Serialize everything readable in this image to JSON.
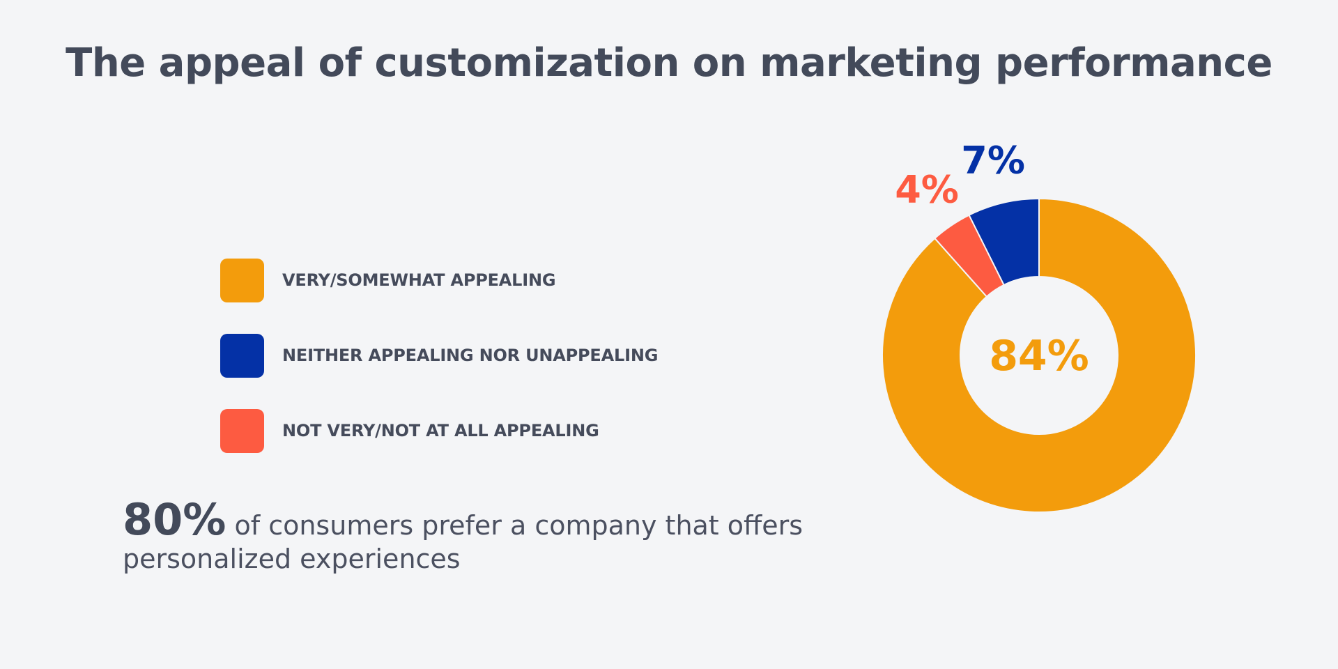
{
  "title": "The appeal of customization on marketing performance",
  "legend": [
    {
      "label": "VERY/SOMEWHAT APPEALING",
      "color": "#f39c0c"
    },
    {
      "label": "NEITHER APPEALING NOR UNAPPEALING",
      "color": "#0431a6"
    },
    {
      "label": "NOT VERY/NOT AT ALL APPEALING",
      "color": "#fd5b41"
    }
  ],
  "stat": {
    "number": "80%",
    "text": "of consumers prefer a company that offers personalized experiences"
  },
  "chart_data": {
    "type": "pie",
    "donut": true,
    "categories": [
      "VERY/SOMEWHAT APPEALING",
      "NEITHER APPEALING NOR UNAPPEALING",
      "NOT VERY/NOT AT ALL APPEALING"
    ],
    "values": [
      84,
      7,
      4
    ],
    "value_labels": [
      "84%",
      "7%",
      "4%"
    ],
    "colors": [
      "#f39c0c",
      "#0431a6",
      "#fd5b41"
    ],
    "slice_border_color": "#f4f5f7",
    "legend_placement": "left"
  }
}
